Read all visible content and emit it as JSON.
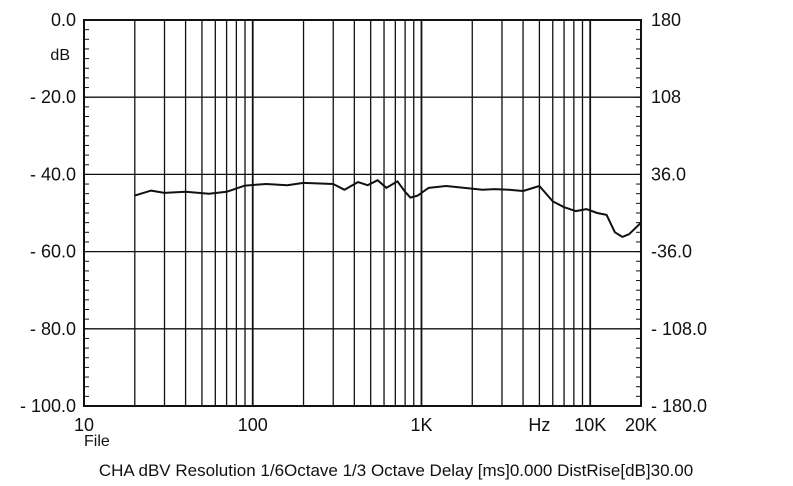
{
  "chart_data": {
    "type": "line",
    "title": "",
    "x_scale": "log",
    "xlim": [
      10,
      20000
    ],
    "ylim": [
      -100,
      0
    ],
    "y2lim": [
      -180,
      180
    ],
    "grid": true,
    "x_ticks": [
      {
        "value": 10,
        "label": "10"
      },
      {
        "value": 100,
        "label": "100"
      },
      {
        "value": 1000,
        "label": "1K"
      },
      {
        "value": 10000,
        "label": "10K"
      },
      {
        "value": 20000,
        "label": "20K"
      }
    ],
    "x_unit_label": "Hz",
    "x_sub_label": "File",
    "y_ticks": [
      {
        "value": 0,
        "label": "0.0"
      },
      {
        "value": -20,
        "label": "- 20.0"
      },
      {
        "value": -40,
        "label": "- 40.0"
      },
      {
        "value": -60,
        "label": "- 60.0"
      },
      {
        "value": -80,
        "label": "- 80.0"
      },
      {
        "value": -100,
        "label": "- 100.0"
      }
    ],
    "y_unit_label": "dB",
    "y2_ticks": [
      {
        "value": 180,
        "label": "180"
      },
      {
        "value": 108,
        "label": "108"
      },
      {
        "value": 36,
        "label": "36.0"
      },
      {
        "value": -36,
        "label": "-36.0"
      },
      {
        "value": -108,
        "label": "- 108.0"
      },
      {
        "value": -180,
        "label": "- 180.0"
      }
    ],
    "footer": "CHA dBV Resolution 1/6Octave 1/3 Octave Delay [ms]0.000 DistRise[dB]30.00",
    "series": [
      {
        "color": "#111111",
        "points": [
          [
            20,
            -45.5
          ],
          [
            25,
            -44.2
          ],
          [
            30,
            -44.8
          ],
          [
            40,
            -44.5
          ],
          [
            55,
            -45.0
          ],
          [
            70,
            -44.5
          ],
          [
            90,
            -42.9
          ],
          [
            120,
            -42.5
          ],
          [
            160,
            -42.8
          ],
          [
            200,
            -42.2
          ],
          [
            300,
            -42.5
          ],
          [
            350,
            -44.0
          ],
          [
            420,
            -42.0
          ],
          [
            480,
            -42.8
          ],
          [
            550,
            -41.5
          ],
          [
            620,
            -43.5
          ],
          [
            720,
            -41.8
          ],
          [
            800,
            -44.5
          ],
          [
            860,
            -46.0
          ],
          [
            950,
            -45.5
          ],
          [
            1100,
            -43.5
          ],
          [
            1400,
            -43.0
          ],
          [
            1800,
            -43.5
          ],
          [
            2300,
            -44.0
          ],
          [
            2700,
            -43.8
          ],
          [
            3300,
            -44.0
          ],
          [
            4000,
            -44.3
          ],
          [
            5000,
            -43.0
          ],
          [
            6000,
            -47.0
          ],
          [
            7000,
            -48.5
          ],
          [
            8200,
            -49.5
          ],
          [
            9500,
            -49.0
          ],
          [
            11000,
            -50.0
          ],
          [
            12500,
            -50.5
          ],
          [
            14000,
            -55.0
          ],
          [
            15500,
            -56.2
          ],
          [
            17000,
            -55.5
          ],
          [
            20000,
            -52.5
          ]
        ]
      }
    ]
  }
}
